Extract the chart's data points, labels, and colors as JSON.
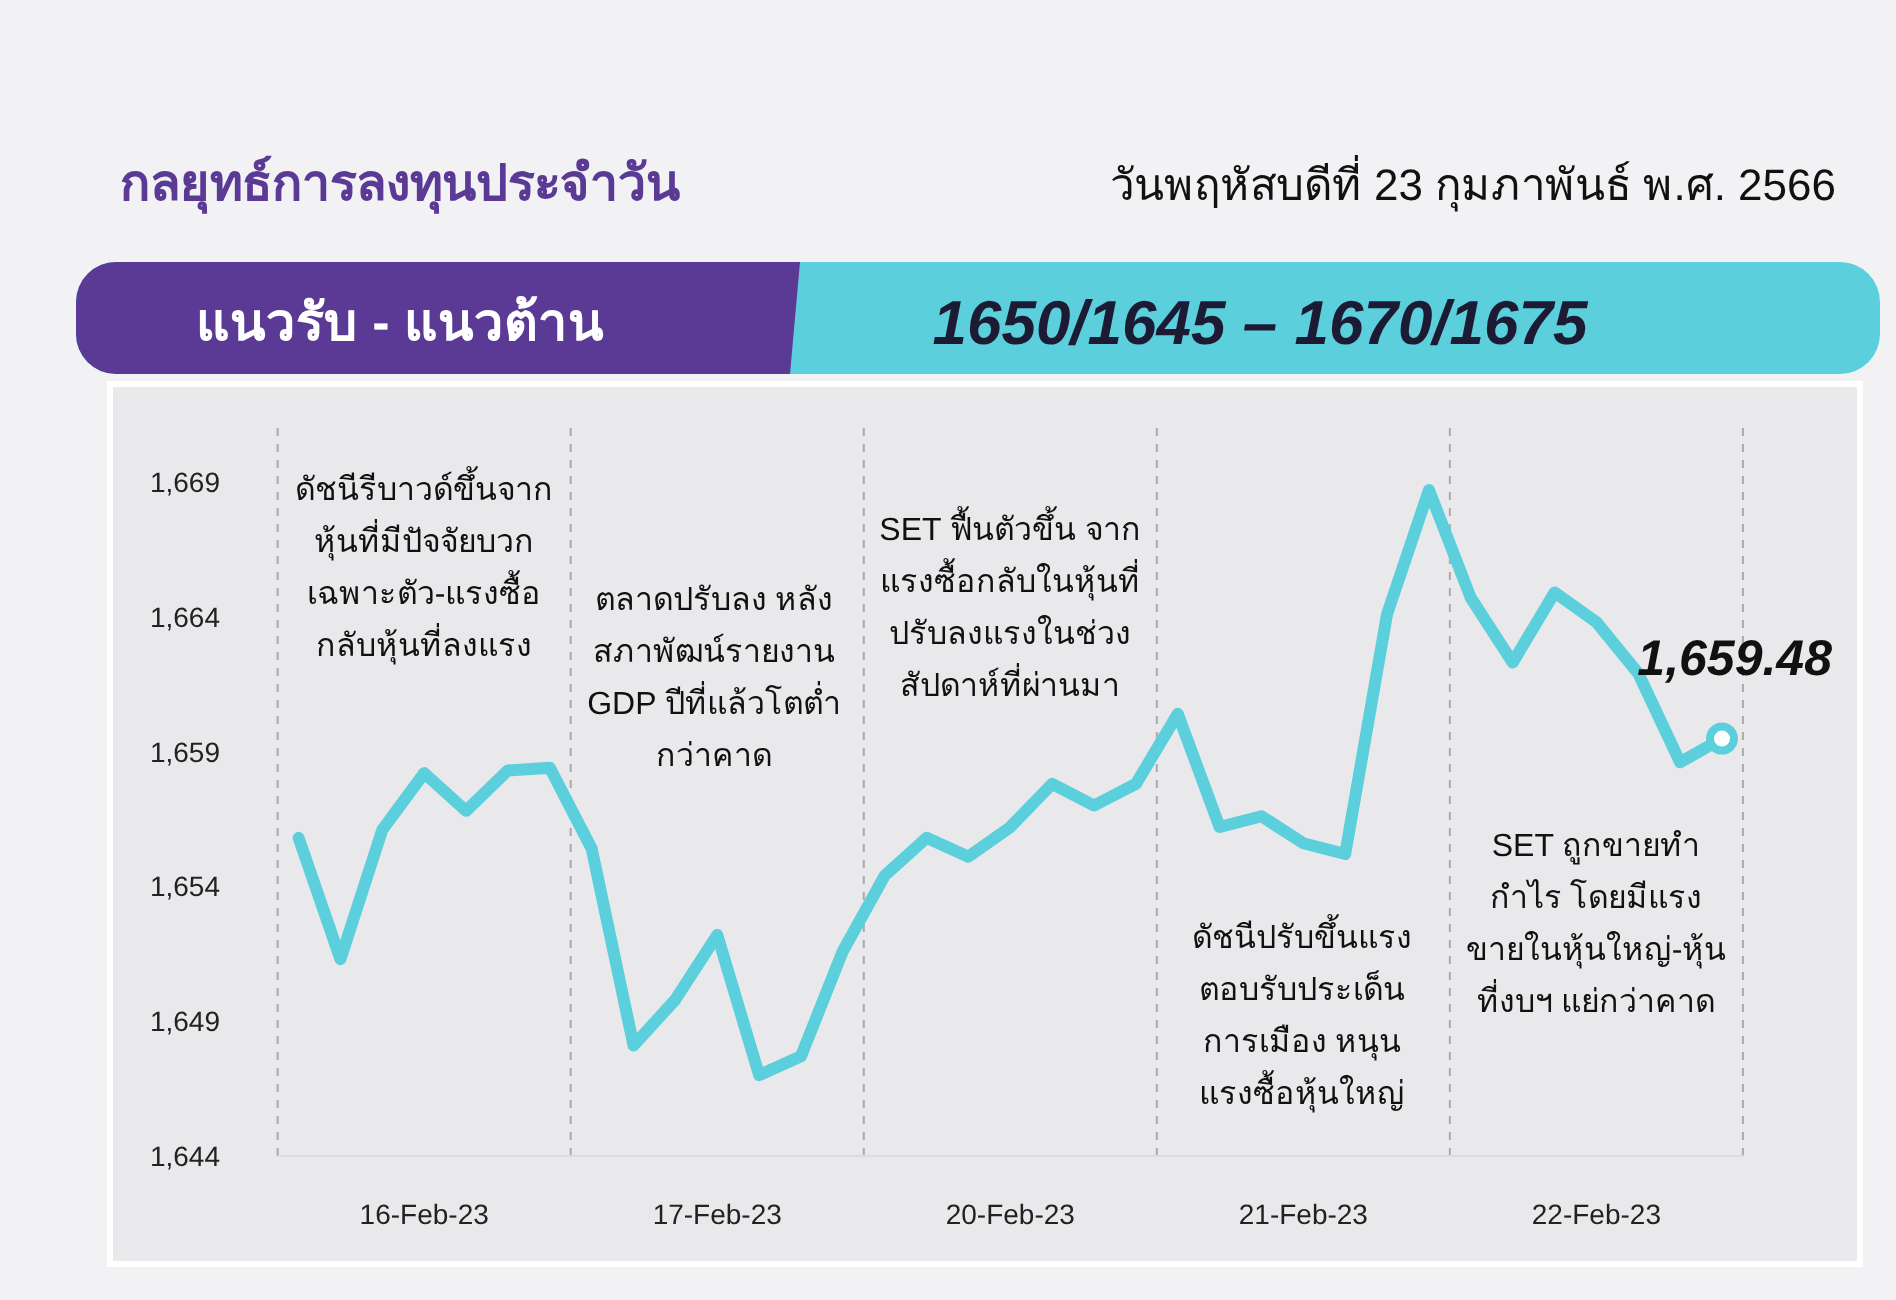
{
  "chart_data": {
    "type": "line",
    "title": "กลยุทธ์การลงทุนประจำวัน",
    "subtitle": "วันพฤหัสบดีที่ 23 กุมภาพันธ์ พ.ศ. 2566",
    "annotations": [
      "แนวรับ - แนวต้าน",
      "1650/1645 – 1670/1675",
      "ดัชนีรีบาวด์ขึ้นจาก\nหุ้นที่มีปัจจัยบวก\nเฉพาะตัว-แรงซื้อ\nกลับหุ้นที่ลงแรง",
      "ตลาดปรับลง หลัง\nสภาพัฒน์รายงาน\nGDP ปีที่แล้วโตต่ำ\nกว่าคาด",
      "SET ฟื้นตัวขึ้น จาก\nแรงซื้อกลับในหุ้นที่\nปรับลงแรงในช่วง\nสัปดาห์ที่ผ่านมา",
      "ดัชนีปรับขึ้นแรง\nตอบรับประเด็น\nการเมือง หนุน\nแรงซื้อหุ้นใหญ่",
      "SET ถูกขายทำ\nกำไร โดยมีแรง\nขายในหุ้นใหญ่-หุ้น\nที่งบฯ แย่กว่าคาด"
    ],
    "categories": [
      null,
      null,
      null,
      "16-Feb-23",
      null,
      null,
      null,
      null,
      null,
      null,
      "17-Feb-23",
      null,
      null,
      null,
      null,
      null,
      null,
      "20-Feb-23",
      null,
      null,
      null,
      null,
      null,
      null,
      "21-Feb-23",
      null,
      null,
      null,
      null,
      null,
      null,
      "22-Feb-23",
      null,
      null,
      null
    ],
    "series": [
      {
        "color": "#5bcfdc",
        "values": [
          1655.8,
          1651.3,
          1656.1,
          1658.2,
          1656.8,
          1658.3,
          1658.4,
          1655.4,
          1648.1,
          1649.8,
          1652.2,
          1647.0,
          1647.7,
          1651.6,
          1654.4,
          1655.8,
          1655.1,
          1656.2,
          1657.8,
          1657.0,
          1657.8,
          1660.4,
          1656.2,
          1656.6,
          1655.6,
          1655.2,
          1664.1,
          1668.7,
          1664.7,
          1662.3,
          1664.9,
          1663.8,
          1661.9,
          1658.6,
          1659.48
        ],
        "value_labels": [
          null,
          null,
          null,
          null,
          null,
          null,
          null,
          null,
          null,
          null,
          null,
          null,
          null,
          null,
          null,
          null,
          null,
          null,
          null,
          null,
          null,
          null,
          null,
          null,
          null,
          null,
          null,
          null,
          null,
          null,
          null,
          null,
          null,
          null,
          "1,659.48"
        ]
      }
    ],
    "ylim": [
      1644,
      1671
    ],
    "yticks": [
      {
        "value": 1644,
        "label": "1,644"
      },
      {
        "value": 1649,
        "label": "1,649"
      },
      {
        "value": 1654,
        "label": "1,654"
      },
      {
        "value": 1659,
        "label": "1,659"
      },
      {
        "value": 1664,
        "label": "1,664"
      },
      {
        "value": 1669,
        "label": "1,669"
      }
    ],
    "grid": false,
    "line_style": "solid",
    "marker": "none"
  }
}
